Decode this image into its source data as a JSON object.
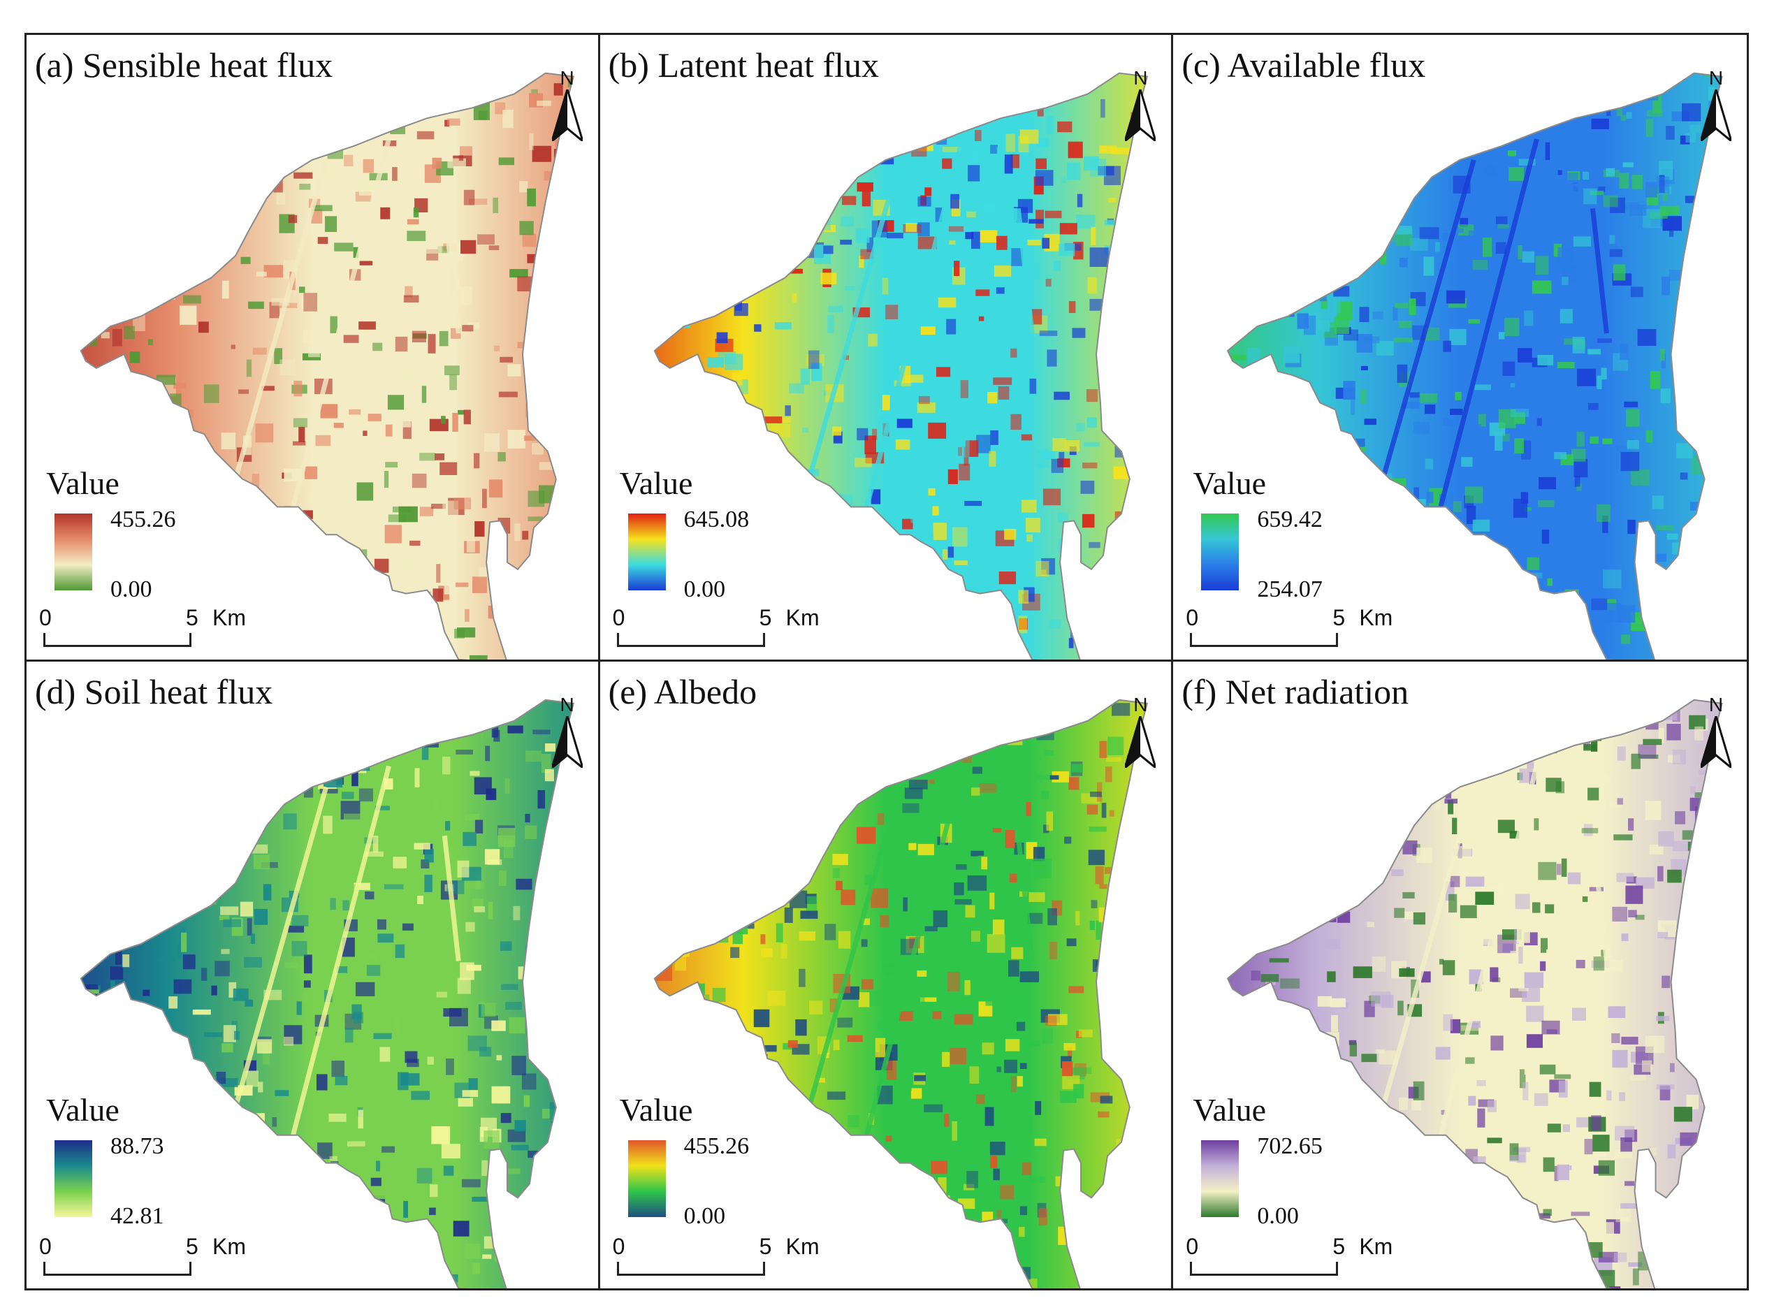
{
  "figure": {
    "panels": [
      {
        "id": "a",
        "title": "(a) Sensible heat flux",
        "legend": {
          "title": "Value",
          "max": "455.26",
          "min": "0.00",
          "colors": [
            "#b2332a",
            "#e58a6a",
            "#f3ecc4",
            "#4f9a34"
          ]
        },
        "scale": {
          "zero": "0",
          "five": "5",
          "unit": "Km"
        },
        "north": "N"
      },
      {
        "id": "b",
        "title": "(b) Latent heat flux",
        "legend": {
          "title": "Value",
          "max": "645.08",
          "min": "0.00",
          "colors": [
            "#e01f14",
            "#f6e21c",
            "#3ddbe0",
            "#1a3cd6"
          ]
        },
        "scale": {
          "zero": "0",
          "five": "5",
          "unit": "Km"
        },
        "north": "N"
      },
      {
        "id": "c",
        "title": "(c) Available flux",
        "legend": {
          "title": "Value",
          "max": "659.42",
          "min": "254.07",
          "colors": [
            "#33c94f",
            "#35c6d6",
            "#2b7ee8",
            "#1a3cd6"
          ]
        },
        "scale": {
          "zero": "0",
          "five": "5",
          "unit": "Km"
        },
        "north": "N"
      },
      {
        "id": "d",
        "title": "(d) Soil heat flux",
        "legend": {
          "title": "Value",
          "max": "88.73",
          "min": "42.81",
          "colors": [
            "#1f2d8c",
            "#1a8a8c",
            "#7ad150",
            "#f7f79a"
          ]
        },
        "scale": {
          "zero": "0",
          "five": "5",
          "unit": "Km"
        },
        "north": "N"
      },
      {
        "id": "e",
        "title": "(e) Albedo",
        "legend": {
          "title": "Value",
          "max": "455.26",
          "min": "0.00",
          "colors": [
            "#e0552a",
            "#f1e21b",
            "#2fc54a",
            "#1f4f80"
          ]
        },
        "scale": {
          "zero": "0",
          "five": "5",
          "unit": "Km"
        },
        "north": "N"
      },
      {
        "id": "f",
        "title": "(f) Net radiation",
        "legend": {
          "title": "Value",
          "max": "702.65",
          "min": "0.00",
          "colors": [
            "#6d3ea0",
            "#c3b0d8",
            "#f4f0c8",
            "#2e7a2c"
          ]
        },
        "scale": {
          "zero": "0",
          "five": "5",
          "unit": "Km"
        },
        "north": "N"
      }
    ]
  }
}
